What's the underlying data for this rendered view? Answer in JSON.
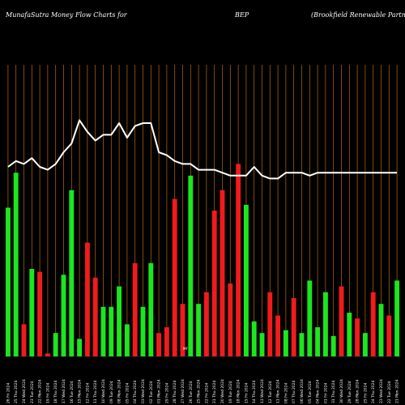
{
  "header": {
    "left": "MunafaSutra  Money Flow  Charts for",
    "middle": "BEP",
    "right": "(Brookfield Renewable   Partners"
  },
  "colors": {
    "background": "#000000",
    "grid": "#b86a12",
    "up": "#1ce61c",
    "down": "#f01b1b",
    "line": "#ffffff"
  },
  "chart_data": {
    "type": "bar",
    "note": "MF",
    "ylim": [
      0,
      100
    ],
    "categories": [
      "26 Fri 2024",
      "25 Thu 2024",
      "24 Wed 2024",
      "23 Tue 2024",
      "22 Mon 2024",
      "19 Fri 2024",
      "18 Thu 2024",
      "17 Wed 2024",
      "16 Tue 2024",
      "15 Mon 2024",
      "12 Fri 2024",
      "11 Thu 2024",
      "10 Wed 2024",
      "09 Tue 2024",
      "08 Mon 2024",
      "05 Fri 2024",
      "04 Thu 2024",
      "03 Wed 2024",
      "02 Tue 2024",
      "01 Mon 2024",
      "29 Fri 2024",
      "28 Thu 2024",
      "27 Wed 2024",
      "26 Tue 2024",
      "25 Mon 2024",
      "22 Fri 2024",
      "21 Thu 2024",
      "20 Wed 2024",
      "19 Tue 2024",
      "18 Mon 2024",
      "15 Fri 2024",
      "14 Thu 2024",
      "13 Wed 2024",
      "12 Tue 2024",
      "11 Mon 2024",
      "08 Fri 2024",
      "07 Thu 2024",
      "06 Wed 2024",
      "05 Tue 2024",
      "04 Mon 2024",
      "01 Fri 2024",
      "31 Thu 2024",
      "30 Wed 2024",
      "29 Tue 2024",
      "28 Mon 2024",
      "25 Fri 2024",
      "24 Thu 2024",
      "23 Wed 2024",
      "22 Tue 2024",
      "21 Mon 2024"
    ],
    "series": [
      {
        "kind": "bars",
        "values": [
          51,
          63,
          11,
          30,
          29,
          1,
          8,
          28,
          57,
          6,
          39,
          27,
          17,
          17,
          24,
          11,
          32,
          17,
          32,
          8,
          10,
          54,
          18,
          62,
          18,
          22,
          50,
          57,
          25,
          66,
          52,
          12,
          8,
          22,
          14,
          9,
          20,
          8,
          26,
          10,
          22,
          7,
          24,
          15,
          13,
          8,
          22,
          18,
          14,
          26
        ],
        "colors": [
          "up",
          "up",
          "down",
          "up",
          "down",
          "down",
          "up",
          "up",
          "up",
          "up",
          "down",
          "down",
          "up",
          "up",
          "up",
          "up",
          "down",
          "up",
          "up",
          "down",
          "down",
          "down",
          "down",
          "up",
          "up",
          "down",
          "down",
          "down",
          "down",
          "down",
          "up",
          "up",
          "up",
          "down",
          "down",
          "up",
          "down",
          "up",
          "up",
          "up",
          "up",
          "up",
          "down",
          "up",
          "down",
          "up",
          "down",
          "up",
          "down",
          "up"
        ]
      },
      {
        "kind": "line",
        "values": [
          65,
          67,
          66,
          68,
          65,
          64,
          66,
          70,
          73,
          81,
          77,
          74,
          76,
          76,
          80,
          75,
          79,
          80,
          80,
          70,
          69,
          67,
          66,
          66,
          64,
          64,
          64,
          63,
          62,
          62,
          62,
          65,
          62,
          61,
          61,
          63,
          63,
          63,
          62,
          63,
          63,
          63,
          63,
          63,
          63,
          63,
          63,
          63,
          63,
          63
        ]
      }
    ]
  }
}
